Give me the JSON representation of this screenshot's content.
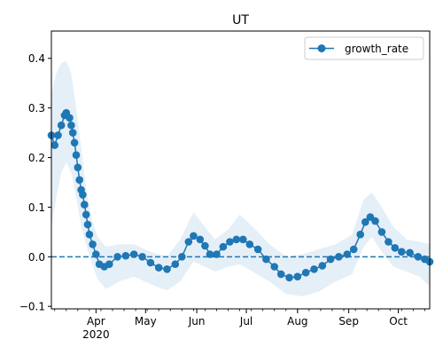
{
  "chart_data": {
    "type": "line",
    "title": "UT",
    "xlabel": "",
    "ylabel": "",
    "x_start": "2020-03-05",
    "x_end": "2020-10-20",
    "ylim": [
      -0.105,
      0.455
    ],
    "x_ticks": [
      {
        "date": "2020-04-01",
        "label": "Apr",
        "sublabel": "2020"
      },
      {
        "date": "2020-05-01",
        "label": "May",
        "sublabel": ""
      },
      {
        "date": "2020-06-01",
        "label": "Jun",
        "sublabel": ""
      },
      {
        "date": "2020-07-01",
        "label": "Jul",
        "sublabel": ""
      },
      {
        "date": "2020-08-01",
        "label": "Aug",
        "sublabel": ""
      },
      {
        "date": "2020-09-01",
        "label": "Sep",
        "sublabel": ""
      },
      {
        "date": "2020-10-01",
        "label": "Oct",
        "sublabel": ""
      }
    ],
    "minor_tick_step_days": 7,
    "y_ticks": [
      -0.1,
      0.0,
      0.1,
      0.2,
      0.3,
      0.4
    ],
    "y_tick_labels": [
      "−0.1",
      "0.0",
      "0.1",
      "0.2",
      "0.3",
      "0.4"
    ],
    "reference_line": {
      "y": 0.0,
      "style": "dashed",
      "color": "#1f77b4"
    },
    "legend": {
      "placement": "top-right",
      "entries": [
        "growth_rate"
      ]
    },
    "colors": {
      "line": "#1f77b4",
      "band": "#c6dbef"
    },
    "series": [
      {
        "name": "growth_rate",
        "points": [
          [
            "2020-03-05",
            0.245
          ],
          [
            "2020-03-07",
            0.225
          ],
          [
            "2020-03-09",
            0.245
          ],
          [
            "2020-03-11",
            0.265
          ],
          [
            "2020-03-13",
            0.285
          ],
          [
            "2020-03-14",
            0.29
          ],
          [
            "2020-03-16",
            0.28
          ],
          [
            "2020-03-17",
            0.265
          ],
          [
            "2020-03-18",
            0.25
          ],
          [
            "2020-03-19",
            0.23
          ],
          [
            "2020-03-20",
            0.205
          ],
          [
            "2020-03-21",
            0.18
          ],
          [
            "2020-03-22",
            0.155
          ],
          [
            "2020-03-23",
            0.135
          ],
          [
            "2020-03-24",
            0.125
          ],
          [
            "2020-03-25",
            0.105
          ],
          [
            "2020-03-26",
            0.085
          ],
          [
            "2020-03-27",
            0.065
          ],
          [
            "2020-03-28",
            0.045
          ],
          [
            "2020-03-30",
            0.025
          ],
          [
            "2020-04-01",
            0.005
          ],
          [
            "2020-04-03",
            -0.015
          ],
          [
            "2020-04-06",
            -0.02
          ],
          [
            "2020-04-09",
            -0.015
          ],
          [
            "2020-04-14",
            0.0
          ],
          [
            "2020-04-19",
            0.002
          ],
          [
            "2020-04-24",
            0.005
          ],
          [
            "2020-04-29",
            0.0
          ],
          [
            "2020-05-04",
            -0.012
          ],
          [
            "2020-05-09",
            -0.022
          ],
          [
            "2020-05-14",
            -0.025
          ],
          [
            "2020-05-19",
            -0.015
          ],
          [
            "2020-05-23",
            0.0
          ],
          [
            "2020-05-27",
            0.03
          ],
          [
            "2020-05-30",
            0.042
          ],
          [
            "2020-06-03",
            0.035
          ],
          [
            "2020-06-06",
            0.022
          ],
          [
            "2020-06-09",
            0.005
          ],
          [
            "2020-06-13",
            0.005
          ],
          [
            "2020-06-17",
            0.02
          ],
          [
            "2020-06-21",
            0.03
          ],
          [
            "2020-06-25",
            0.035
          ],
          [
            "2020-06-29",
            0.035
          ],
          [
            "2020-07-03",
            0.025
          ],
          [
            "2020-07-08",
            0.015
          ],
          [
            "2020-07-13",
            -0.005
          ],
          [
            "2020-07-18",
            -0.02
          ],
          [
            "2020-07-22",
            -0.035
          ],
          [
            "2020-07-27",
            -0.042
          ],
          [
            "2020-08-01",
            -0.04
          ],
          [
            "2020-08-06",
            -0.032
          ],
          [
            "2020-08-11",
            -0.025
          ],
          [
            "2020-08-16",
            -0.018
          ],
          [
            "2020-08-21",
            -0.005
          ],
          [
            "2020-08-26",
            0.0
          ],
          [
            "2020-08-31",
            0.005
          ],
          [
            "2020-09-04",
            0.015
          ],
          [
            "2020-09-08",
            0.045
          ],
          [
            "2020-09-11",
            0.07
          ],
          [
            "2020-09-14",
            0.08
          ],
          [
            "2020-09-17",
            0.072
          ],
          [
            "2020-09-21",
            0.05
          ],
          [
            "2020-09-25",
            0.03
          ],
          [
            "2020-09-29",
            0.018
          ],
          [
            "2020-10-03",
            0.01
          ],
          [
            "2020-10-08",
            0.008
          ],
          [
            "2020-10-13",
            0.0
          ],
          [
            "2020-10-17",
            -0.005
          ],
          [
            "2020-10-20",
            -0.01
          ]
        ],
        "band_upper": [
          [
            "2020-03-05",
            0.33
          ],
          [
            "2020-03-08",
            0.37
          ],
          [
            "2020-03-11",
            0.39
          ],
          [
            "2020-03-14",
            0.395
          ],
          [
            "2020-03-17",
            0.37
          ],
          [
            "2020-03-20",
            0.3
          ],
          [
            "2020-03-23",
            0.22
          ],
          [
            "2020-03-26",
            0.14
          ],
          [
            "2020-03-29",
            0.08
          ],
          [
            "2020-04-02",
            0.04
          ],
          [
            "2020-04-07",
            0.02
          ],
          [
            "2020-04-15",
            0.025
          ],
          [
            "2020-04-24",
            0.025
          ],
          [
            "2020-05-04",
            0.01
          ],
          [
            "2020-05-14",
            0.0
          ],
          [
            "2020-05-22",
            0.035
          ],
          [
            "2020-05-30",
            0.09
          ],
          [
            "2020-06-06",
            0.06
          ],
          [
            "2020-06-12",
            0.035
          ],
          [
            "2020-06-20",
            0.055
          ],
          [
            "2020-06-27",
            0.085
          ],
          [
            "2020-07-05",
            0.06
          ],
          [
            "2020-07-15",
            0.025
          ],
          [
            "2020-07-25",
            0.0
          ],
          [
            "2020-08-04",
            0.005
          ],
          [
            "2020-08-14",
            0.015
          ],
          [
            "2020-08-24",
            0.025
          ],
          [
            "2020-09-03",
            0.045
          ],
          [
            "2020-09-10",
            0.115
          ],
          [
            "2020-09-15",
            0.13
          ],
          [
            "2020-09-21",
            0.1
          ],
          [
            "2020-09-28",
            0.06
          ],
          [
            "2020-10-06",
            0.035
          ],
          [
            "2020-10-14",
            0.03
          ],
          [
            "2020-10-20",
            0.025
          ]
        ],
        "band_lower": [
          [
            "2020-03-05",
            0.06
          ],
          [
            "2020-03-08",
            0.12
          ],
          [
            "2020-03-11",
            0.17
          ],
          [
            "2020-03-14",
            0.19
          ],
          [
            "2020-03-17",
            0.17
          ],
          [
            "2020-03-20",
            0.12
          ],
          [
            "2020-03-23",
            0.06
          ],
          [
            "2020-03-26",
            0.025
          ],
          [
            "2020-03-29",
            -0.01
          ],
          [
            "2020-04-02",
            -0.045
          ],
          [
            "2020-04-07",
            -0.065
          ],
          [
            "2020-04-15",
            -0.05
          ],
          [
            "2020-04-24",
            -0.04
          ],
          [
            "2020-05-04",
            -0.055
          ],
          [
            "2020-05-14",
            -0.068
          ],
          [
            "2020-05-22",
            -0.05
          ],
          [
            "2020-05-30",
            -0.01
          ],
          [
            "2020-06-06",
            -0.02
          ],
          [
            "2020-06-12",
            -0.03
          ],
          [
            "2020-06-20",
            -0.02
          ],
          [
            "2020-06-27",
            -0.015
          ],
          [
            "2020-07-05",
            -0.03
          ],
          [
            "2020-07-15",
            -0.05
          ],
          [
            "2020-07-25",
            -0.075
          ],
          [
            "2020-08-04",
            -0.08
          ],
          [
            "2020-08-14",
            -0.07
          ],
          [
            "2020-08-24",
            -0.05
          ],
          [
            "2020-09-03",
            -0.035
          ],
          [
            "2020-09-10",
            0.02
          ],
          [
            "2020-09-15",
            0.04
          ],
          [
            "2020-09-21",
            0.01
          ],
          [
            "2020-09-28",
            -0.02
          ],
          [
            "2020-10-06",
            -0.03
          ],
          [
            "2020-10-14",
            -0.04
          ],
          [
            "2020-10-20",
            -0.06
          ]
        ]
      }
    ]
  }
}
